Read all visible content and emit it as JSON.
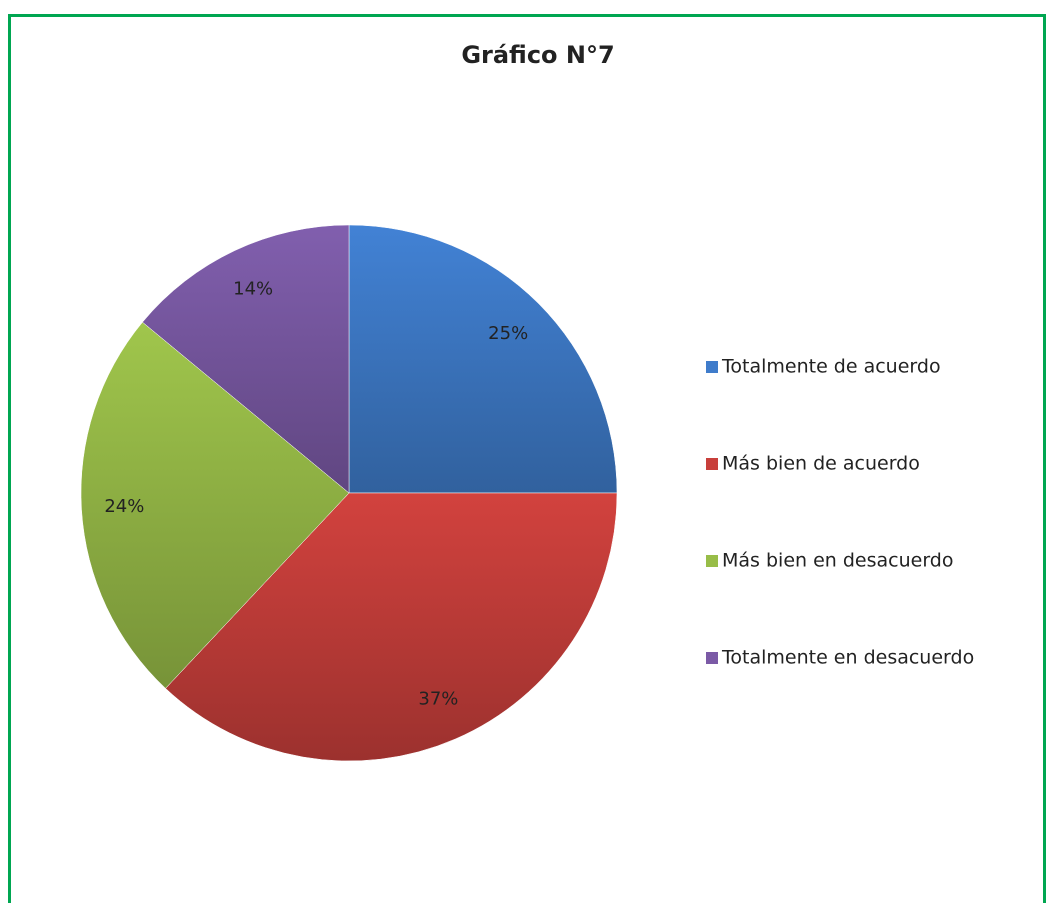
{
  "chart_data": {
    "type": "pie",
    "title": "Gráfico N°7",
    "categories": [
      "Totalmente de acuerdo",
      "Más bien de acuerdo",
      "Más bien en desacuerdo",
      "Totalmente en desacuerdo"
    ],
    "values": [
      25,
      37,
      24,
      14
    ],
    "value_labels": [
      "25%",
      "37%",
      "24%",
      "14%"
    ],
    "colors": [
      "#3f7ccb",
      "#c83f3b",
      "#98bd48",
      "#7b5aa6"
    ],
    "legend": "right"
  }
}
